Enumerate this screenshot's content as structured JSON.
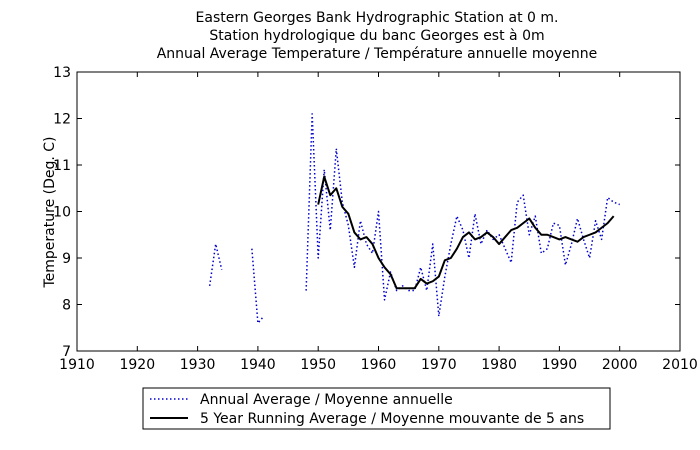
{
  "chart_data": {
    "type": "line",
    "title": [
      "Eastern Georges Bank Hydrographic Station at 0 m.",
      "Station hydrologique du banc Georges est à 0m",
      "Annual Average Temperature / Température annuelle moyenne"
    ],
    "xlabel": "",
    "ylabel": "Temperature (Deg. C)",
    "xlim": [
      1910,
      2010
    ],
    "ylim": [
      7,
      13
    ],
    "xticks": [
      1910,
      1920,
      1930,
      1940,
      1950,
      1960,
      1970,
      1980,
      1990,
      2000,
      2010
    ],
    "yticks": [
      7,
      8,
      9,
      10,
      11,
      12,
      13
    ],
    "grid": false,
    "legend_position": "bottom",
    "series": [
      {
        "name": "Annual Average / Moyenne annuelle",
        "style": "dotted",
        "color": "#0000cc",
        "segments": [
          [
            [
              1932,
              8.4
            ],
            [
              1933,
              9.3
            ],
            [
              1934,
              8.75
            ]
          ],
          [
            [
              1939,
              9.2
            ],
            [
              1940,
              7.6
            ],
            [
              1941,
              7.75
            ]
          ],
          [
            [
              1948,
              8.3
            ],
            [
              1949,
              12.1
            ],
            [
              1950,
              9.0
            ],
            [
              1951,
              10.9
            ],
            [
              1952,
              9.6
            ],
            [
              1953,
              11.35
            ],
            [
              1954,
              10.2
            ],
            [
              1955,
              9.7
            ],
            [
              1956,
              8.8
            ],
            [
              1957,
              9.8
            ],
            [
              1958,
              9.3
            ],
            [
              1959,
              9.1
            ],
            [
              1960,
              10.0
            ],
            [
              1961,
              8.1
            ],
            [
              1962,
              8.7
            ],
            [
              1963,
              8.3
            ],
            [
              1964,
              8.4
            ],
            [
              1965,
              8.3
            ],
            [
              1966,
              8.3
            ],
            [
              1967,
              8.8
            ],
            [
              1968,
              8.3
            ],
            [
              1969,
              9.3
            ],
            [
              1970,
              7.75
            ],
            [
              1971,
              8.6
            ],
            [
              1972,
              9.3
            ],
            [
              1973,
              9.9
            ],
            [
              1974,
              9.6
            ],
            [
              1975,
              9.0
            ],
            [
              1976,
              9.95
            ],
            [
              1977,
              9.3
            ],
            [
              1978,
              9.6
            ],
            [
              1979,
              9.4
            ],
            [
              1980,
              9.5
            ],
            [
              1981,
              9.2
            ],
            [
              1982,
              8.9
            ],
            [
              1983,
              10.2
            ],
            [
              1984,
              10.35
            ],
            [
              1985,
              9.5
            ],
            [
              1986,
              9.9
            ],
            [
              1987,
              9.1
            ],
            [
              1988,
              9.2
            ],
            [
              1989,
              9.75
            ],
            [
              1990,
              9.7
            ],
            [
              1991,
              8.85
            ],
            [
              1992,
              9.3
            ],
            [
              1993,
              9.85
            ],
            [
              1994,
              9.4
            ],
            [
              1995,
              9.0
            ],
            [
              1996,
              9.8
            ],
            [
              1997,
              9.4
            ],
            [
              1998,
              10.3
            ],
            [
              1999,
              10.2
            ],
            [
              2000,
              10.15
            ]
          ]
        ]
      },
      {
        "name": "5 Year Running Average / Moyenne mouvante de 5 ans",
        "style": "solid",
        "color": "#000000",
        "segments": [
          [
            [
              1950,
              10.15
            ],
            [
              1951,
              10.75
            ],
            [
              1952,
              10.35
            ],
            [
              1953,
              10.5
            ],
            [
              1954,
              10.1
            ],
            [
              1955,
              9.95
            ],
            [
              1956,
              9.55
            ],
            [
              1957,
              9.4
            ],
            [
              1958,
              9.45
            ],
            [
              1959,
              9.3
            ],
            [
              1960,
              9.0
            ],
            [
              1961,
              8.8
            ],
            [
              1962,
              8.65
            ],
            [
              1963,
              8.35
            ],
            [
              1964,
              8.35
            ],
            [
              1965,
              8.35
            ],
            [
              1966,
              8.35
            ],
            [
              1967,
              8.55
            ],
            [
              1968,
              8.45
            ],
            [
              1969,
              8.5
            ],
            [
              1970,
              8.6
            ],
            [
              1971,
              8.95
            ],
            [
              1972,
              9.0
            ],
            [
              1973,
              9.2
            ],
            [
              1974,
              9.45
            ],
            [
              1975,
              9.55
            ],
            [
              1976,
              9.4
            ],
            [
              1977,
              9.45
            ],
            [
              1978,
              9.55
            ],
            [
              1979,
              9.45
            ],
            [
              1980,
              9.3
            ],
            [
              1981,
              9.45
            ],
            [
              1982,
              9.6
            ],
            [
              1983,
              9.65
            ],
            [
              1984,
              9.75
            ],
            [
              1985,
              9.85
            ],
            [
              1986,
              9.65
            ],
            [
              1987,
              9.5
            ],
            [
              1988,
              9.5
            ],
            [
              1989,
              9.45
            ],
            [
              1990,
              9.4
            ],
            [
              1991,
              9.45
            ],
            [
              1992,
              9.4
            ],
            [
              1993,
              9.35
            ],
            [
              1994,
              9.45
            ],
            [
              1995,
              9.5
            ],
            [
              1996,
              9.55
            ],
            [
              1997,
              9.65
            ],
            [
              1998,
              9.75
            ],
            [
              1999,
              9.9
            ]
          ]
        ]
      }
    ]
  }
}
